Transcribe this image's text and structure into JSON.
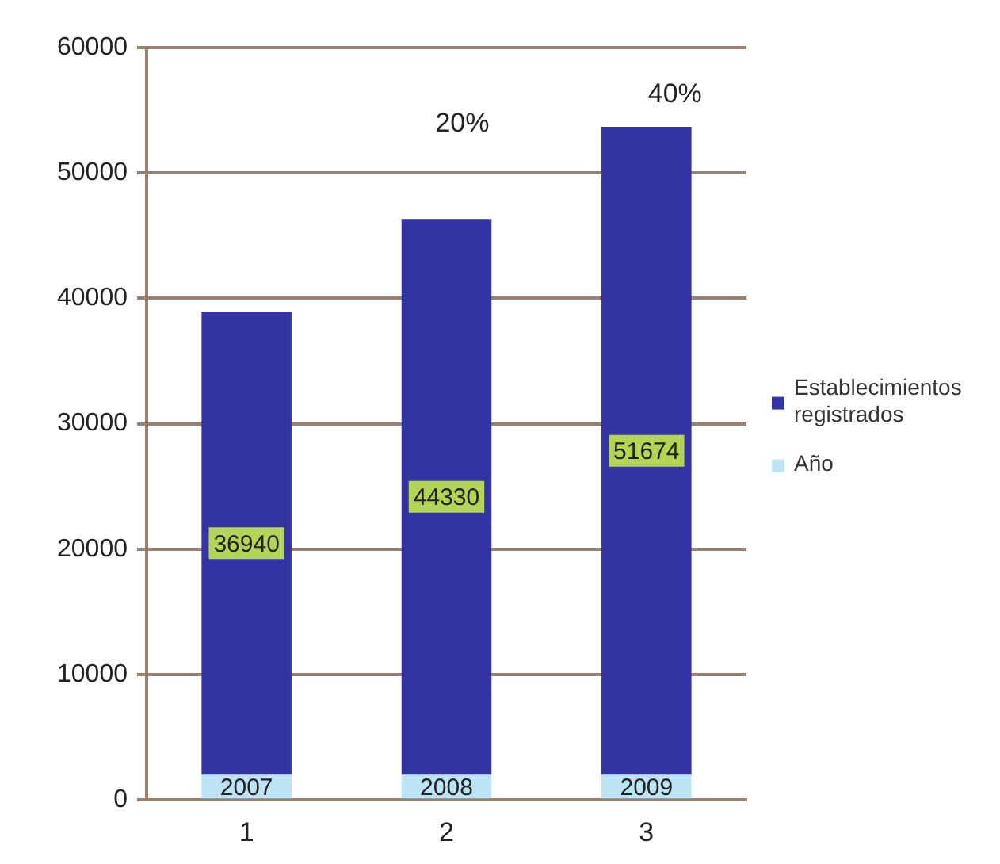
{
  "chart_data": {
    "type": "bar",
    "stacked": true,
    "categories": [
      "1",
      "2",
      "3"
    ],
    "series": [
      {
        "name": "Año",
        "color": "#bde4f4",
        "values": [
          2007,
          2008,
          2009
        ]
      },
      {
        "name": "Establecimientos registrados",
        "color": "#3333a3",
        "values": [
          36940,
          44330,
          51674
        ]
      }
    ],
    "ylim": [
      0,
      60000
    ],
    "yticks": [
      0,
      10000,
      20000,
      30000,
      40000,
      50000,
      60000
    ],
    "grid": "y",
    "legend": "right",
    "data_labels": true,
    "annotations": [
      "20%",
      "40%"
    ]
  }
}
